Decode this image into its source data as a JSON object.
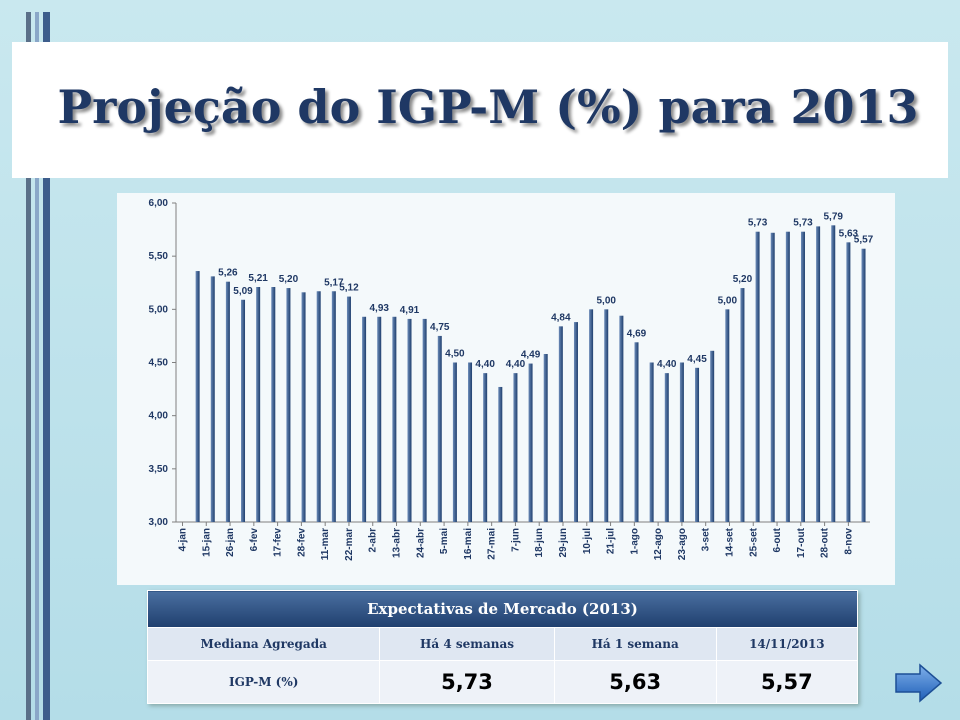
{
  "chart_data": {
    "type": "bar",
    "title": "Projeção do IGP-M (%) para 2013",
    "x": [
      11,
      18,
      25,
      32,
      39,
      46,
      53,
      60,
      67,
      74,
      81,
      88,
      95,
      102,
      109,
      116,
      123,
      130,
      137,
      144,
      151,
      158,
      165,
      172,
      179,
      186,
      193,
      200,
      207,
      214,
      221,
      228,
      235,
      242,
      249,
      256,
      263,
      270,
      277,
      284,
      291,
      298,
      305,
      312,
      319
    ],
    "values": [
      5.36,
      5.31,
      5.26,
      5.09,
      5.21,
      5.21,
      5.2,
      5.16,
      5.17,
      5.17,
      5.12,
      4.93,
      4.93,
      4.93,
      4.91,
      4.91,
      4.75,
      4.5,
      4.5,
      4.4,
      4.27,
      4.4,
      4.49,
      4.58,
      4.84,
      4.88,
      5.0,
      5.0,
      4.94,
      4.69,
      4.5,
      4.4,
      4.5,
      4.45,
      4.61,
      5.0,
      5.2,
      5.73,
      5.72,
      5.73,
      5.73,
      5.78,
      5.79,
      5.63,
      5.57
    ],
    "value_labels": [
      null,
      null,
      "5,26",
      "5,09",
      "5,21",
      null,
      "5,20",
      null,
      null,
      "5,17",
      "5,12",
      null,
      "4,93",
      null,
      "4,91",
      null,
      "4,75",
      "4,50",
      null,
      "4,40",
      null,
      "4,40",
      "4,49",
      null,
      "4,84",
      null,
      null,
      "5,00",
      null,
      "4,69",
      null,
      "4,40",
      null,
      "4,45",
      null,
      "5,00",
      "5,20",
      "5,73",
      null,
      null,
      "5,73",
      null,
      "5,79",
      "5,63",
      "5,57"
    ],
    "color": "#1f3f6e",
    "xlim": [
      1,
      322
    ],
    "xticks": [
      {
        "value": 4,
        "label": "4-jan"
      },
      {
        "value": 15,
        "label": "15-jan"
      },
      {
        "value": 26,
        "label": "26-jan"
      },
      {
        "value": 37,
        "label": "6-fev"
      },
      {
        "value": 48,
        "label": "17-fev"
      },
      {
        "value": 59,
        "label": "28-fev"
      },
      {
        "value": 70,
        "label": "11-mar"
      },
      {
        "value": 81,
        "label": "22-mar"
      },
      {
        "value": 92,
        "label": "2-abr"
      },
      {
        "value": 103,
        "label": "13-abr"
      },
      {
        "value": 114,
        "label": "24-abr"
      },
      {
        "value": 125,
        "label": "5-mai"
      },
      {
        "value": 136,
        "label": "16-mai"
      },
      {
        "value": 147,
        "label": "27-mai"
      },
      {
        "value": 158,
        "label": "7-jun"
      },
      {
        "value": 169,
        "label": "18-jun"
      },
      {
        "value": 180,
        "label": "29-jun"
      },
      {
        "value": 191,
        "label": "10-jul"
      },
      {
        "value": 202,
        "label": "21-jul"
      },
      {
        "value": 213,
        "label": "1-ago"
      },
      {
        "value": 224,
        "label": "12-ago"
      },
      {
        "value": 235,
        "label": "23-ago"
      },
      {
        "value": 246,
        "label": "3-set"
      },
      {
        "value": 257,
        "label": "14-set"
      },
      {
        "value": 268,
        "label": "25-set"
      },
      {
        "value": 279,
        "label": "6-out"
      },
      {
        "value": 290,
        "label": "17-out"
      },
      {
        "value": 301,
        "label": "28-out"
      },
      {
        "value": 312,
        "label": "8-nov"
      }
    ],
    "ylim": [
      3,
      6
    ],
    "yticks": [
      {
        "value": 3,
        "label": "3,00"
      },
      {
        "value": 3.5,
        "label": "3,50"
      },
      {
        "value": 4,
        "label": "4,00"
      },
      {
        "value": 4.5,
        "label": "4,50"
      },
      {
        "value": 5,
        "label": "5,00"
      },
      {
        "value": 5.5,
        "label": "5,50"
      },
      {
        "value": 6,
        "label": "6,00"
      }
    ],
    "grid": false
  },
  "table": {
    "title": "Expectativas de Mercado (2013)",
    "header": [
      "Mediana Agregada",
      "Há 4 semanas",
      "Há 1 semana",
      "14/11/2013"
    ],
    "rows": [
      [
        "IGP-M (%)",
        "5,73",
        "5,63",
        "5,57"
      ]
    ]
  }
}
